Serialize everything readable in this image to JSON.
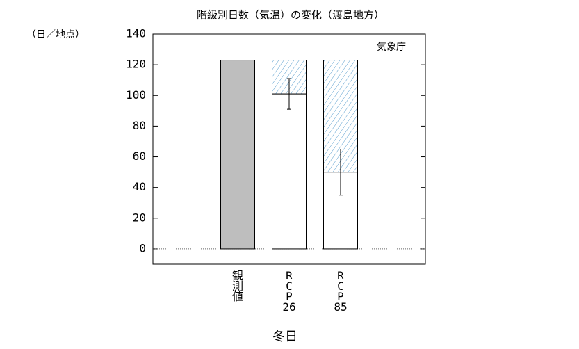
{
  "chart_data": {
    "type": "bar",
    "title": "階級別日数（気温）の変化（渡島地方）",
    "y_label": "（日／地点）",
    "annotation": "気象庁",
    "x_label": "冬日",
    "categories": [
      "観測値",
      "RCP26",
      "RCP85"
    ],
    "series": [
      {
        "color": "#bebebe",
        "values": [
          123,
          null,
          null
        ]
      },
      {
        "color": "#ffffff",
        "values": [
          null,
          101,
          50
        ],
        "errors": [
          null,
          10,
          15
        ]
      },
      {
        "color": "#5a9fcf",
        "hatch": true,
        "values": [
          null,
          22,
          73
        ]
      },
      {
        "color": "#d0665a",
        "hatch": true,
        "values": [
          null,
          null,
          null
        ]
      }
    ],
    "ylim": [
      -10,
      140
    ],
    "yticks": [
      0,
      20,
      40,
      60,
      80,
      100,
      120,
      140
    ]
  }
}
